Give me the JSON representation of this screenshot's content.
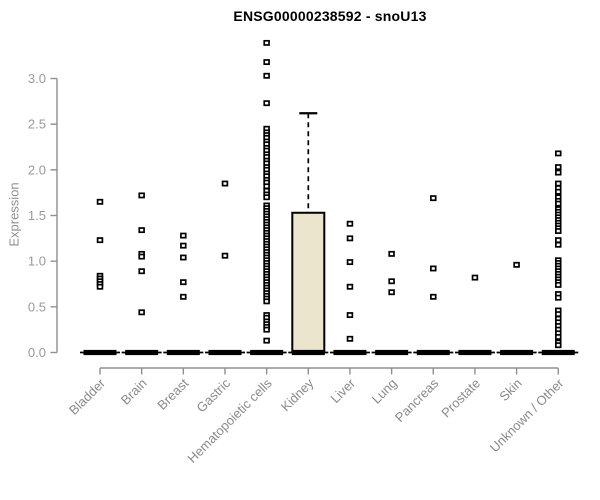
{
  "chart_data": {
    "type": "box",
    "title": "ENSG00000238592 - snoU13",
    "ylabel": "Expression",
    "xlabel": "",
    "ylim": [
      0.0,
      3.45
    ],
    "yticks": [
      0.0,
      0.5,
      1.0,
      1.5,
      2.0,
      2.5,
      3.0
    ],
    "grid": "off",
    "legend": "none",
    "colors": {
      "title": "#000000",
      "axis": "#8f8f8f",
      "tick_label": "#9a9a9a",
      "x_label": "#8a8a8a",
      "point": "#000000",
      "box_fill": "#ebe5cd",
      "box_border": "#000000",
      "zero_bar": "#000000",
      "background": "#ffffff"
    },
    "groups": [
      {
        "label": "Bladder",
        "median": 0,
        "box": null,
        "points": [
          1.65,
          1.23,
          0.84,
          0.81,
          0.78,
          0.75,
          0.72
        ]
      },
      {
        "label": "Brain",
        "median": 0,
        "box": null,
        "points": [
          1.72,
          1.34,
          1.08,
          1.05,
          0.89,
          0.44
        ]
      },
      {
        "label": "Breast",
        "median": 0,
        "box": null,
        "points": [
          1.28,
          1.17,
          1.04,
          0.77,
          0.61
        ]
      },
      {
        "label": "Gastric",
        "median": 0,
        "box": null,
        "points": [
          1.85,
          1.06
        ]
      },
      {
        "label": "Hematopoietic cells",
        "median": 0,
        "box": null,
        "points": [
          3.39,
          3.18,
          3.03,
          2.73,
          2.45,
          2.41,
          2.38,
          2.35,
          2.31,
          2.28,
          2.24,
          2.21,
          2.17,
          2.14,
          2.1,
          2.07,
          2.03,
          2.0,
          1.96,
          1.93,
          1.89,
          1.86,
          1.82,
          1.77,
          1.73,
          1.7,
          1.61,
          1.58,
          1.55,
          1.52,
          1.49,
          1.46,
          1.43,
          1.4,
          1.37,
          1.34,
          1.31,
          1.28,
          1.25,
          1.22,
          1.19,
          1.16,
          1.13,
          1.1,
          1.07,
          1.04,
          1.01,
          0.98,
          0.95,
          0.92,
          0.89,
          0.86,
          0.83,
          0.8,
          0.77,
          0.74,
          0.71,
          0.68,
          0.65,
          0.62,
          0.59,
          0.56,
          0.41,
          0.38,
          0.34,
          0.31,
          0.28,
          0.25,
          0.13
        ]
      },
      {
        "label": "Kidney",
        "median": 0,
        "box": {
          "q1": 0.0,
          "q3": 1.53,
          "upper_whisker": 2.62
        },
        "points": []
      },
      {
        "label": "Liver",
        "median": 0,
        "box": null,
        "points": [
          1.41,
          1.25,
          0.99,
          0.72,
          0.41,
          0.15
        ]
      },
      {
        "label": "Lung",
        "median": 0,
        "box": null,
        "points": [
          1.08,
          0.78,
          0.66
        ]
      },
      {
        "label": "Pancreas",
        "median": 0,
        "box": null,
        "points": [
          1.69,
          0.92,
          0.61
        ]
      },
      {
        "label": "Prostate",
        "median": 0,
        "box": null,
        "points": [
          0.82
        ]
      },
      {
        "label": "Skin",
        "median": 0,
        "box": null,
        "points": [
          0.96
        ]
      },
      {
        "label": "Unknown / Other",
        "median": 0,
        "box": null,
        "points": [
          2.18,
          2.03,
          1.97,
          1.85,
          1.8,
          1.76,
          1.7,
          1.66,
          1.63,
          1.57,
          1.54,
          1.51,
          1.48,
          1.45,
          1.42,
          1.39,
          1.36,
          1.33,
          1.23,
          1.18,
          1.01,
          0.98,
          0.95,
          0.92,
          0.89,
          0.86,
          0.83,
          0.8,
          0.77,
          0.74,
          0.64,
          0.6,
          0.46,
          0.42,
          0.37,
          0.33,
          0.29,
          0.25,
          0.21,
          0.17,
          0.11,
          0.08
        ]
      }
    ]
  }
}
